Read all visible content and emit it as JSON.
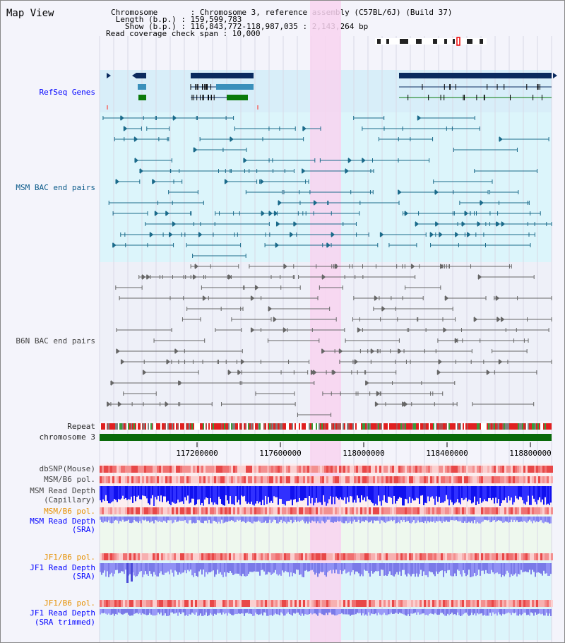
{
  "title": "Map View",
  "info": {
    "chromosome": "Chromosome       : Chromosome 3, reference assembly (C57BL/6J) (Build 37)",
    "length": " Length (b.p.) : 159,599,783",
    "show": "   Show (b.p.) : 116,843,772-118,987,035 : 2,143,264 bp",
    "coverage": "Read coverage check span : 10,000"
  },
  "labels": {
    "refseq": "RefSeq Genes",
    "msm_bac": "MSM BAC end pairs",
    "b6n_bac": "B6N BAC end pairs",
    "repeat": "Repeat",
    "chromosome": "chromosome 3",
    "dbsnp": "dbSNP(Mouse)",
    "msm_b6_pol": "MSM/B6 pol.",
    "msm_depth_cap_1": "MSM Read Depth",
    "msm_depth_cap_2": "(Capillary)",
    "msm_b6_pol_2": "MSM/B6 pol.",
    "msm_depth_sra_1": "MSM Read Depth",
    "msm_depth_sra_2": "(SRA)",
    "jf1_b6_pol": "JF1/B6 pol.",
    "jf1_depth_sra_1": "JF1 Read Depth",
    "jf1_depth_sra_2": "(SRA)",
    "jf1_b6_pol_2": "JF1/B6 pol.",
    "jf1_depth_trim_1": "JF1 Read Depth",
    "jf1_depth_trim_2": "(SRA trimmed)"
  },
  "axis": {
    "ticks": [
      "117200000",
      "117600000",
      "118000000",
      "118400000",
      "118800000"
    ]
  },
  "colors": {
    "refseq_bg": "#d8eef9",
    "msm_bg": "#dcf5fb",
    "b6n_bg": "#eef0f8",
    "highlight": "#f8d4f0",
    "gene_dark": "#0a2a5e",
    "gene_mid": "#3a90bb",
    "gene_green": "#0a7a0a",
    "msm_line": "#1a6a8a",
    "b6n_line": "#666666",
    "chrom_bar": "#0a6a0a"
  }
}
